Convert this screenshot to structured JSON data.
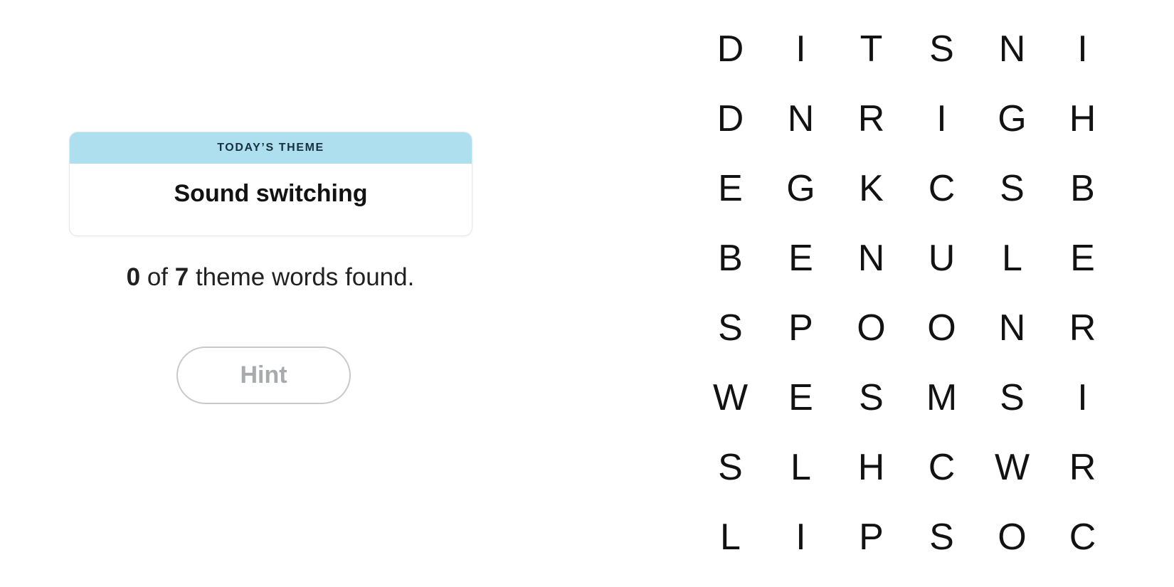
{
  "colors": {
    "page_bg": "#ffffff",
    "theme_header_bg": "#aedfee",
    "theme_header_text": "#17303e",
    "card_border": "#e7e7e7",
    "title_text": "#121212",
    "body_text": "#212121",
    "letter_text": "#121212",
    "hint_border": "#c9c9c9",
    "hint_text": "#a7abad"
  },
  "theme_card": {
    "header_label": "TODAY’S THEME",
    "title": "Sound switching"
  },
  "progress": {
    "found": "0",
    "of_label": " of ",
    "total": "7",
    "suffix": " theme words found."
  },
  "hint_button": {
    "label": "Hint"
  },
  "board": {
    "rows": 8,
    "cols": 6,
    "letters": [
      [
        "D",
        "I",
        "T",
        "S",
        "N",
        "I"
      ],
      [
        "D",
        "N",
        "R",
        "I",
        "G",
        "H"
      ],
      [
        "E",
        "G",
        "K",
        "C",
        "S",
        "B"
      ],
      [
        "B",
        "E",
        "N",
        "U",
        "L",
        "E"
      ],
      [
        "S",
        "P",
        "O",
        "O",
        "N",
        "R"
      ],
      [
        "W",
        "E",
        "S",
        "M",
        "S",
        "I"
      ],
      [
        "S",
        "L",
        "H",
        "C",
        "W",
        "R"
      ],
      [
        "L",
        "I",
        "P",
        "S",
        "O",
        "C"
      ]
    ]
  }
}
